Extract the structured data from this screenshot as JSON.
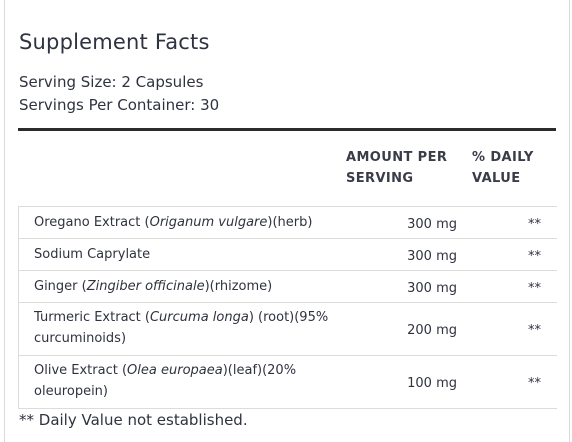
{
  "title": "Supplement Facts",
  "serving_size": "Serving Size: 2 Capsules",
  "servings_per_container": "Servings Per Container: 30",
  "columns": {
    "amount_line1": "AMOUNT PER",
    "amount_line2": "SERVING",
    "dv_line1": "% DAILY",
    "dv_line2": "VALUE"
  },
  "rows": [
    {
      "pre": "Oregano Extract (",
      "latin": "Origanum vulgare",
      "post": ")(herb)",
      "amount": "300 mg",
      "dv": "**"
    },
    {
      "pre": "Sodium Caprylate",
      "latin": "",
      "post": "",
      "amount": "300 mg",
      "dv": "**"
    },
    {
      "pre": "Ginger (",
      "latin": "Zingiber officinale",
      "post": ")(rhizome)",
      "amount": "300 mg",
      "dv": "**"
    },
    {
      "pre": "Turmeric Extract (",
      "latin": "Curcuma longa",
      "post": ") (root)(95% curcuminoids)",
      "amount": "200 mg",
      "dv": "**"
    },
    {
      "pre": "Olive Extract (",
      "latin": "Olea europaea",
      "post": ")(leaf)(20% oleuropein)",
      "amount": "100 mg",
      "dv": "**"
    }
  ],
  "footnote": "** Daily Value not established."
}
